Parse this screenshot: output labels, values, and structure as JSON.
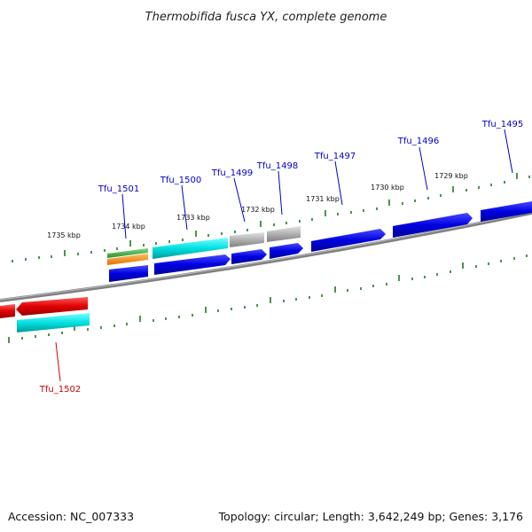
{
  "title": "Thermobifida fusca YX, complete genome",
  "footer": {
    "accession": "Accession: NC_007333",
    "summary": "Topology: circular; Length: 3,642,249 bp; Genes: 3,176"
  },
  "colors": {
    "backbone": "#808080",
    "tick": "#1f7a1f",
    "forward_gene": "#0000e0",
    "reverse_gene": "#e00000",
    "cds_cyan": "#00e0e0",
    "gray_feature": "#b0b0b0",
    "green_feature": "#33aa33",
    "orange_feature": "#ff8800",
    "label_forward": "#0000cc",
    "label_reverse": "#cc0000"
  },
  "scale_labels": [
    "1735 kbp",
    "1734 kbp",
    "1733 kbp",
    "1732 kbp",
    "1731 kbp",
    "1730 kbp",
    "1729 kbp"
  ],
  "gene_labels": [
    {
      "id": "tfu-1501",
      "text": "Tfu_1501",
      "strand": "forward"
    },
    {
      "id": "tfu-1500",
      "text": "Tfu_1500",
      "strand": "forward"
    },
    {
      "id": "tfu-1499",
      "text": "Tfu_1499",
      "strand": "forward"
    },
    {
      "id": "tfu-1498",
      "text": "Tfu_1498",
      "strand": "forward"
    },
    {
      "id": "tfu-1497",
      "text": "Tfu_1497",
      "strand": "forward"
    },
    {
      "id": "tfu-1496",
      "text": "Tfu_1496",
      "strand": "forward"
    },
    {
      "id": "tfu-1495",
      "text": "Tfu_1495",
      "strand": "forward"
    },
    {
      "id": "tfu-1502",
      "text": "Tfu_1502",
      "strand": "reverse"
    }
  ]
}
